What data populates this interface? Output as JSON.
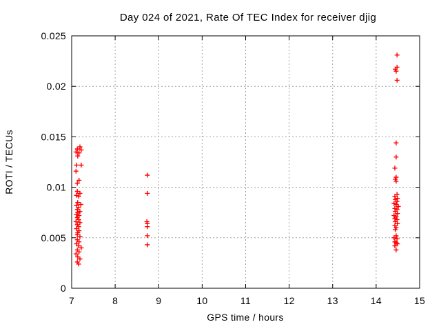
{
  "chart_data": {
    "type": "scatter",
    "title": "Day 024 of 2021, Rate Of TEC Index for receiver djig",
    "xlabel": "GPS time / hours",
    "ylabel": "ROTI / TECUs",
    "xlim": [
      7,
      15
    ],
    "ylim": [
      0,
      0.025
    ],
    "x_ticks": [
      7,
      8,
      9,
      10,
      11,
      12,
      13,
      14,
      15
    ],
    "x_tick_labels": [
      "7",
      "8",
      "9",
      "10",
      "11",
      "12",
      "13",
      "14",
      "15"
    ],
    "y_ticks": [
      0,
      0.005,
      0.01,
      0.015,
      0.02,
      0.025
    ],
    "y_tick_labels": [
      "0",
      "0.005",
      "0.01",
      "0.015",
      "0.02",
      "0.025"
    ],
    "grid": true,
    "legend_position": "none",
    "background_color": "#ffffff",
    "marker": {
      "shape": "plus",
      "color": "#ff0000",
      "size": 7
    },
    "series": [
      {
        "name": "roti",
        "points": [
          [
            7.19,
            0.014
          ],
          [
            7.13,
            0.0138
          ],
          [
            7.22,
            0.0137
          ],
          [
            7.1,
            0.0135
          ],
          [
            7.17,
            0.0134
          ],
          [
            7.14,
            0.0131
          ],
          [
            7.11,
            0.0122
          ],
          [
            7.22,
            0.0122
          ],
          [
            7.1,
            0.0116
          ],
          [
            7.17,
            0.0107
          ],
          [
            7.13,
            0.0104
          ],
          [
            7.13,
            0.0096
          ],
          [
            7.19,
            0.0094
          ],
          [
            7.11,
            0.0092
          ],
          [
            7.16,
            0.0091
          ],
          [
            7.14,
            0.0085
          ],
          [
            7.21,
            0.0083
          ],
          [
            7.11,
            0.0082
          ],
          [
            7.16,
            0.008
          ],
          [
            7.13,
            0.0078
          ],
          [
            7.19,
            0.0076
          ],
          [
            7.14,
            0.0075
          ],
          [
            7.11,
            0.0073
          ],
          [
            7.17,
            0.0072
          ],
          [
            7.13,
            0.007
          ],
          [
            7.16,
            0.0068
          ],
          [
            7.1,
            0.0066
          ],
          [
            7.19,
            0.0065
          ],
          [
            7.13,
            0.0063
          ],
          [
            7.16,
            0.0061
          ],
          [
            7.11,
            0.0059
          ],
          [
            7.17,
            0.0057
          ],
          [
            7.14,
            0.0055
          ],
          [
            7.13,
            0.0053
          ],
          [
            7.19,
            0.0051
          ],
          [
            7.13,
            0.0048
          ],
          [
            7.17,
            0.0046
          ],
          [
            7.11,
            0.0044
          ],
          [
            7.16,
            0.0042
          ],
          [
            7.22,
            0.004
          ],
          [
            7.13,
            0.0038
          ],
          [
            7.17,
            0.0036
          ],
          [
            7.1,
            0.0034
          ],
          [
            7.14,
            0.0031
          ],
          [
            7.19,
            0.0029
          ],
          [
            7.13,
            0.0026
          ],
          [
            7.16,
            0.0024
          ],
          [
            8.74,
            0.0112
          ],
          [
            8.74,
            0.0094
          ],
          [
            8.73,
            0.0066
          ],
          [
            8.74,
            0.0064
          ],
          [
            8.74,
            0.0061
          ],
          [
            8.74,
            0.0052
          ],
          [
            8.74,
            0.0043
          ],
          [
            14.48,
            0.0231
          ],
          [
            14.48,
            0.0219
          ],
          [
            14.44,
            0.0217
          ],
          [
            14.46,
            0.0215
          ],
          [
            14.48,
            0.0206
          ],
          [
            14.46,
            0.0144
          ],
          [
            14.46,
            0.013
          ],
          [
            14.43,
            0.0119
          ],
          [
            14.46,
            0.011
          ],
          [
            14.44,
            0.0108
          ],
          [
            14.46,
            0.0106
          ],
          [
            14.48,
            0.0093
          ],
          [
            14.43,
            0.0091
          ],
          [
            14.49,
            0.0089
          ],
          [
            14.44,
            0.0088
          ],
          [
            14.48,
            0.0086
          ],
          [
            14.41,
            0.0084
          ],
          [
            14.46,
            0.0083
          ],
          [
            14.51,
            0.0081
          ],
          [
            14.43,
            0.0079
          ],
          [
            14.48,
            0.0078
          ],
          [
            14.44,
            0.0076
          ],
          [
            14.49,
            0.0074
          ],
          [
            14.41,
            0.0072
          ],
          [
            14.46,
            0.0071
          ],
          [
            14.43,
            0.0069
          ],
          [
            14.48,
            0.0068
          ],
          [
            14.44,
            0.0066
          ],
          [
            14.49,
            0.0064
          ],
          [
            14.43,
            0.0062
          ],
          [
            14.46,
            0.006
          ],
          [
            14.44,
            0.0058
          ],
          [
            14.46,
            0.0052
          ],
          [
            14.41,
            0.005
          ],
          [
            14.48,
            0.0049
          ],
          [
            14.43,
            0.0046
          ],
          [
            14.46,
            0.0045
          ],
          [
            14.49,
            0.0044
          ],
          [
            14.43,
            0.0042
          ],
          [
            14.46,
            0.0038
          ]
        ]
      }
    ]
  }
}
